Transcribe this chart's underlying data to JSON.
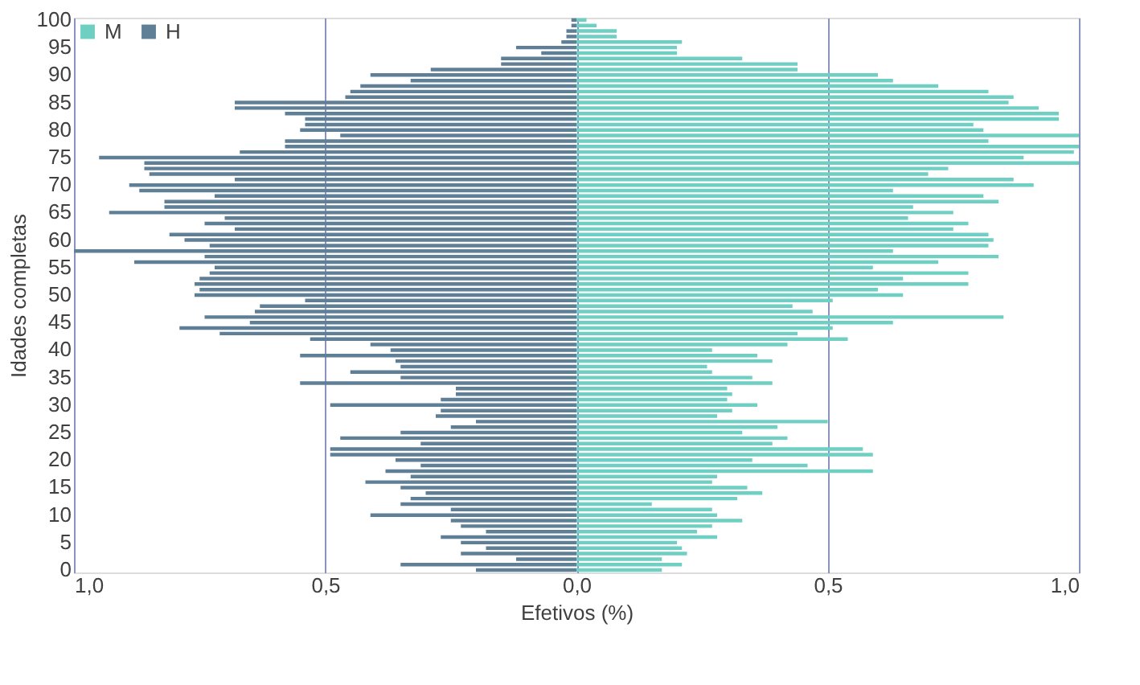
{
  "chart_data": {
    "type": "bar",
    "orientation": "horizontal",
    "categories": [
      "100",
      null,
      null,
      null,
      null,
      "95",
      null,
      null,
      null,
      null,
      "90",
      null,
      null,
      null,
      null,
      "85",
      null,
      null,
      null,
      null,
      "80",
      null,
      null,
      null,
      null,
      "75",
      null,
      null,
      null,
      null,
      "70",
      null,
      null,
      null,
      null,
      "65",
      null,
      null,
      null,
      null,
      "60",
      null,
      null,
      null,
      null,
      "55",
      null,
      null,
      null,
      null,
      "50",
      null,
      null,
      null,
      null,
      "45",
      null,
      null,
      null,
      null,
      "40",
      null,
      null,
      null,
      null,
      "35",
      null,
      null,
      null,
      null,
      "30",
      null,
      null,
      null,
      null,
      "25",
      null,
      null,
      null,
      null,
      "20",
      null,
      null,
      null,
      null,
      "15",
      null,
      null,
      null,
      null,
      "10",
      null,
      null,
      null,
      null,
      "5",
      null,
      null,
      null,
      null,
      "0"
    ],
    "series": [
      {
        "name": "M",
        "color": "#6fcfc2",
        "values": [
          0.02,
          0.04,
          0.08,
          0.08,
          0.21,
          0.2,
          0.2,
          0.33,
          0.44,
          0.44,
          0.6,
          0.63,
          0.72,
          0.82,
          0.87,
          0.86,
          0.92,
          0.96,
          0.96,
          0.79,
          0.81,
          1.0,
          0.82,
          1.0,
          0.99,
          0.89,
          1.0,
          0.74,
          0.7,
          0.87,
          0.91,
          0.63,
          0.81,
          0.84,
          0.67,
          0.75,
          0.66,
          0.78,
          0.75,
          0.82,
          0.83,
          0.82,
          0.63,
          0.84,
          0.72,
          0.59,
          0.78,
          0.65,
          0.78,
          0.6,
          0.65,
          0.51,
          0.43,
          0.47,
          0.85,
          0.63,
          0.51,
          0.44,
          0.54,
          0.42,
          0.27,
          0.36,
          0.39,
          0.26,
          0.27,
          0.35,
          0.39,
          0.3,
          0.31,
          0.3,
          0.36,
          0.31,
          0.28,
          0.5,
          0.4,
          0.33,
          0.42,
          0.39,
          0.57,
          0.59,
          0.35,
          0.46,
          0.59,
          0.28,
          0.27,
          0.34,
          0.37,
          0.32,
          0.15,
          0.27,
          0.28,
          0.33,
          0.27,
          0.24,
          0.28,
          0.2,
          0.21,
          0.22,
          0.17,
          0.21,
          0.17
        ]
      },
      {
        "name": "H",
        "color": "#5f7f96",
        "values": [
          -0.01,
          -0.01,
          -0.02,
          -0.02,
          -0.03,
          -0.12,
          -0.07,
          -0.15,
          -0.15,
          -0.29,
          -0.41,
          -0.33,
          -0.43,
          -0.45,
          -0.46,
          -0.68,
          -0.68,
          -0.58,
          -0.54,
          -0.54,
          -0.55,
          -0.47,
          -0.58,
          -0.58,
          -0.67,
          -0.95,
          -0.86,
          -0.86,
          -0.85,
          -0.68,
          -0.89,
          -0.87,
          -0.72,
          -0.82,
          -0.82,
          -0.93,
          -0.7,
          -0.74,
          -0.68,
          -0.81,
          -0.78,
          -0.73,
          -1.0,
          -0.74,
          -0.88,
          -0.72,
          -0.73,
          -0.75,
          -0.76,
          -0.75,
          -0.76,
          -0.54,
          -0.63,
          -0.64,
          -0.74,
          -0.65,
          -0.79,
          -0.71,
          -0.53,
          -0.41,
          -0.37,
          -0.55,
          -0.36,
          -0.35,
          -0.45,
          -0.35,
          -0.55,
          -0.24,
          -0.24,
          -0.27,
          -0.49,
          -0.27,
          -0.28,
          -0.2,
          -0.25,
          -0.35,
          -0.47,
          -0.31,
          -0.49,
          -0.49,
          -0.36,
          -0.31,
          -0.38,
          -0.33,
          -0.42,
          -0.35,
          -0.3,
          -0.33,
          -0.35,
          -0.25,
          -0.41,
          -0.25,
          -0.23,
          -0.18,
          -0.27,
          -0.23,
          -0.18,
          -0.23,
          -0.12,
          -0.35,
          -0.2
        ]
      }
    ],
    "xlim": [
      -1,
      1
    ],
    "xticks": [
      {
        "value": -1,
        "label": "1,0"
      },
      {
        "value": -0.5,
        "label": "0,5"
      },
      {
        "value": 0,
        "label": "0,0"
      },
      {
        "value": 0.5,
        "label": "0,5"
      },
      {
        "value": 1,
        "label": "1,0"
      }
    ],
    "xlabel": "Efetivos (%)",
    "ylabel": "Idades completas",
    "grid": "x",
    "legend": "top left",
    "stacked": true
  }
}
